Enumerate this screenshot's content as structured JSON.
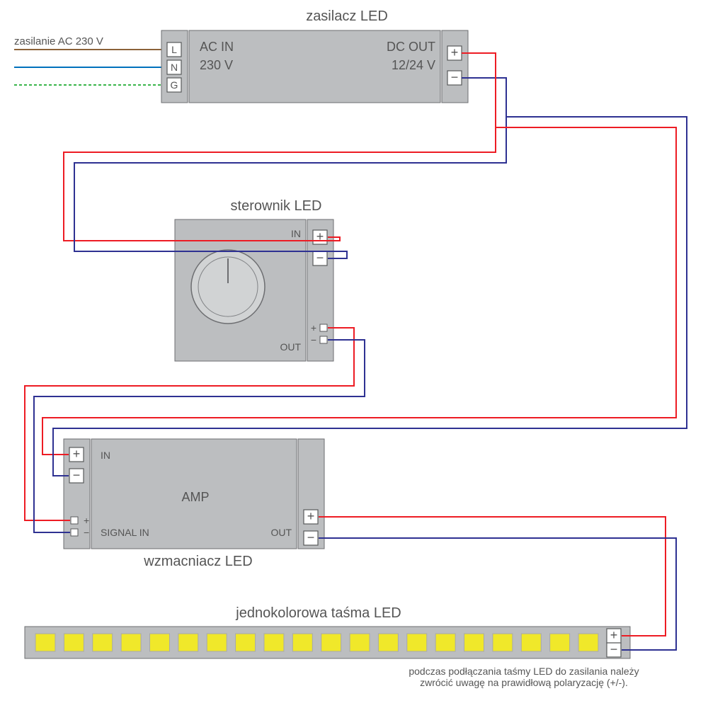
{
  "titles": {
    "psu": "zasilacz LED",
    "controller": "sterownik LED",
    "amp": "wzmacniacz LED",
    "strip": "jednokolorowa taśma LED",
    "ac_input": "zasilanie AC 230 V"
  },
  "psu": {
    "ac_in_title": "AC IN",
    "ac_in_voltage": "230 V",
    "dc_out_title": "DC OUT",
    "dc_out_voltage": "12/24 V",
    "term_L": "L",
    "term_N": "N",
    "term_G": "G",
    "term_plus": "+",
    "term_minus": "−"
  },
  "controller": {
    "in_label": "IN",
    "out_label": "OUT",
    "plus": "+",
    "minus": "−",
    "small_plus": "+",
    "small_minus": "−"
  },
  "amp": {
    "label": "AMP",
    "in_label": "IN",
    "signal_in": "SIGNAL IN",
    "out_label": "OUT",
    "plus": "+",
    "minus": "−",
    "small_plus": "+",
    "small_minus": "−"
  },
  "strip": {
    "plus": "+",
    "minus": "−",
    "led_count": 20,
    "led_color": "#f0e82a"
  },
  "footnote_line1": "podczas podłączania taśmy LED do zasilania należy",
  "footnote_line2": "zwrócić uwagę na prawidłową polaryzację (+/-).",
  "colors": {
    "box_fill": "#bcbec0",
    "box_stroke": "#6d6e71",
    "terminal_fill": "#ffffff",
    "terminal_stroke": "#58595b",
    "wire_red": "#ed1c24",
    "wire_blue": "#2e3192",
    "wire_brown": "#8b6239",
    "wire_ac_blue": "#0071bc",
    "wire_green": "#39b54a",
    "text": "#555555"
  }
}
